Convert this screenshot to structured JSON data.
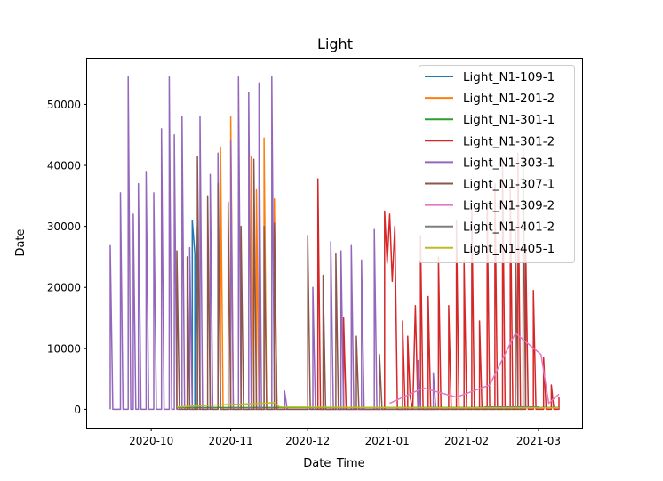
{
  "chart_data": {
    "type": "line",
    "title": "Light",
    "xlabel": "Date_Time",
    "ylabel": "Date",
    "xlim": [
      "2020-09-06",
      "2021-03-18"
    ],
    "ylim": [
      -3000,
      57500
    ],
    "x_ticks": [
      "2020-10-01",
      "2020-11-01",
      "2020-12-01",
      "2021-01-01",
      "2021-02-01",
      "2021-03-01"
    ],
    "x_tick_labels": [
      "2020-10",
      "2020-11",
      "2020-12",
      "2021-01",
      "2021-02",
      "2021-03"
    ],
    "y_ticks": [
      0,
      10000,
      20000,
      30000,
      40000,
      50000
    ],
    "y_tick_labels": [
      "0",
      "10000",
      "20000",
      "30000",
      "40000",
      "50000"
    ],
    "grid": false,
    "legend_position": "top-right",
    "series": [
      {
        "name": "Light_N1-109-1",
        "color": "#1f77b4",
        "points": [
          [
            "2020-10-17",
            0
          ],
          [
            "2020-10-17",
            31000
          ],
          [
            "2020-10-18",
            25500
          ],
          [
            "2020-10-18",
            0
          ],
          [
            "2020-10-19",
            30000
          ],
          [
            "2020-10-19",
            0
          ]
        ]
      },
      {
        "name": "Light_N1-201-2",
        "color": "#ff7f0e",
        "points": [
          [
            "2020-10-28",
            0
          ],
          [
            "2020-10-28",
            43000
          ],
          [
            "2020-10-29",
            0
          ],
          [
            "2020-11-01",
            0
          ],
          [
            "2020-11-01",
            48000
          ],
          [
            "2020-11-02",
            0
          ],
          [
            "2020-11-09",
            0
          ],
          [
            "2020-11-09",
            41500
          ],
          [
            "2020-11-10",
            0
          ],
          [
            "2020-11-11",
            0
          ],
          [
            "2020-11-11",
            36000
          ],
          [
            "2020-11-12",
            0
          ],
          [
            "2020-11-14",
            0
          ],
          [
            "2020-11-14",
            44500
          ],
          [
            "2020-11-15",
            0
          ],
          [
            "2020-11-18",
            0
          ],
          [
            "2020-11-18",
            34500
          ],
          [
            "2020-11-19",
            0
          ]
        ]
      },
      {
        "name": "Light_N1-301-1",
        "color": "#2ca02c",
        "points": [
          [
            "2020-10-11",
            300
          ],
          [
            "2021-03-09",
            300
          ]
        ]
      },
      {
        "name": "Light_N1-301-2",
        "color": "#d62728",
        "points": [
          [
            "2020-12-05",
            0
          ],
          [
            "2020-12-05",
            37800
          ],
          [
            "2020-12-06",
            0
          ],
          [
            "2020-12-15",
            0
          ],
          [
            "2020-12-15",
            15000
          ],
          [
            "2020-12-16",
            0
          ],
          [
            "2020-12-31",
            0
          ],
          [
            "2020-12-31",
            32500
          ],
          [
            "2021-01-01",
            24000
          ],
          [
            "2021-01-02",
            32000
          ],
          [
            "2021-01-03",
            21000
          ],
          [
            "2021-01-04",
            30000
          ],
          [
            "2021-01-05",
            0
          ],
          [
            "2021-01-07",
            0
          ],
          [
            "2021-01-07",
            14500
          ],
          [
            "2021-01-08",
            0
          ],
          [
            "2021-01-09",
            0
          ],
          [
            "2021-01-09",
            12000
          ],
          [
            "2021-01-10",
            2000
          ],
          [
            "2021-01-11",
            0
          ],
          [
            "2021-01-12",
            17000
          ],
          [
            "2021-01-13",
            0
          ],
          [
            "2021-01-14",
            0
          ],
          [
            "2021-01-14",
            28500
          ],
          [
            "2021-01-15",
            0
          ],
          [
            "2021-01-17",
            0
          ],
          [
            "2021-01-17",
            18500
          ],
          [
            "2021-01-18",
            0
          ],
          [
            "2021-01-21",
            0
          ],
          [
            "2021-01-21",
            25000
          ],
          [
            "2021-01-22",
            0
          ],
          [
            "2021-01-25",
            0
          ],
          [
            "2021-01-25",
            17000
          ],
          [
            "2021-01-26",
            0
          ],
          [
            "2021-01-28",
            0
          ],
          [
            "2021-01-28",
            31000
          ],
          [
            "2021-01-29",
            0
          ],
          [
            "2021-01-31",
            0
          ],
          [
            "2021-01-31",
            24500
          ],
          [
            "2021-02-01",
            0
          ],
          [
            "2021-02-03",
            0
          ],
          [
            "2021-02-03",
            33000
          ],
          [
            "2021-02-04",
            0
          ],
          [
            "2021-02-06",
            0
          ],
          [
            "2021-02-06",
            14500
          ],
          [
            "2021-02-07",
            0
          ],
          [
            "2021-02-09",
            0
          ],
          [
            "2021-02-09",
            34000
          ],
          [
            "2021-02-10",
            0
          ],
          [
            "2021-02-12",
            0
          ],
          [
            "2021-02-12",
            37000
          ],
          [
            "2021-02-13",
            0
          ],
          [
            "2021-02-15",
            0
          ],
          [
            "2021-02-15",
            40000
          ],
          [
            "2021-02-16",
            0
          ],
          [
            "2021-02-18",
            0
          ],
          [
            "2021-02-18",
            36500
          ],
          [
            "2021-02-19",
            0
          ],
          [
            "2021-02-21",
            0
          ],
          [
            "2021-02-21",
            42000
          ],
          [
            "2021-02-22",
            0
          ],
          [
            "2021-02-24",
            0
          ],
          [
            "2021-02-24",
            27000
          ],
          [
            "2021-02-25",
            0
          ],
          [
            "2021-02-27",
            0
          ],
          [
            "2021-02-27",
            19500
          ],
          [
            "2021-02-28",
            0
          ],
          [
            "2021-03-03",
            0
          ],
          [
            "2021-03-03",
            8500
          ],
          [
            "2021-03-04",
            0
          ],
          [
            "2021-03-06",
            0
          ],
          [
            "2021-03-06",
            4000
          ],
          [
            "2021-03-07",
            0
          ],
          [
            "2021-03-09",
            0
          ],
          [
            "2021-03-09",
            2000
          ]
        ]
      },
      {
        "name": "Light_N1-303-1",
        "color": "#9467bd",
        "points": [
          [
            "2020-09-15",
            0
          ],
          [
            "2020-09-15",
            27000
          ],
          [
            "2020-09-16",
            0
          ],
          [
            "2020-09-19",
            0
          ],
          [
            "2020-09-19",
            35500
          ],
          [
            "2020-09-20",
            0
          ],
          [
            "2020-09-22",
            0
          ],
          [
            "2020-09-22",
            54500
          ],
          [
            "2020-09-23",
            0
          ],
          [
            "2020-09-24",
            0
          ],
          [
            "2020-09-24",
            32000
          ],
          [
            "2020-09-25",
            0
          ],
          [
            "2020-09-26",
            0
          ],
          [
            "2020-09-26",
            37000
          ],
          [
            "2020-09-27",
            0
          ],
          [
            "2020-09-29",
            0
          ],
          [
            "2020-09-29",
            39000
          ],
          [
            "2020-09-30",
            0
          ],
          [
            "2020-10-02",
            0
          ],
          [
            "2020-10-02",
            35500
          ],
          [
            "2020-10-03",
            0
          ],
          [
            "2020-10-05",
            0
          ],
          [
            "2020-10-05",
            46000
          ],
          [
            "2020-10-06",
            0
          ],
          [
            "2020-10-08",
            0
          ],
          [
            "2020-10-08",
            54500
          ],
          [
            "2020-10-09",
            0
          ],
          [
            "2020-10-10",
            0
          ],
          [
            "2020-10-10",
            45000
          ],
          [
            "2020-10-11",
            0
          ],
          [
            "2020-10-13",
            0
          ],
          [
            "2020-10-13",
            48000
          ],
          [
            "2020-10-14",
            0
          ],
          [
            "2020-10-16",
            0
          ],
          [
            "2020-10-16",
            26500
          ],
          [
            "2020-10-17",
            0
          ],
          [
            "2020-10-20",
            0
          ],
          [
            "2020-10-20",
            48000
          ],
          [
            "2020-10-21",
            0
          ],
          [
            "2020-10-24",
            0
          ],
          [
            "2020-10-24",
            38500
          ],
          [
            "2020-10-25",
            0
          ],
          [
            "2020-10-27",
            0
          ],
          [
            "2020-10-27",
            42000
          ],
          [
            "2020-10-28",
            0
          ],
          [
            "2020-11-01",
            0
          ],
          [
            "2020-11-01",
            44000
          ],
          [
            "2020-11-02",
            0
          ],
          [
            "2020-11-04",
            0
          ],
          [
            "2020-11-04",
            54500
          ],
          [
            "2020-11-05",
            0
          ],
          [
            "2020-11-08",
            0
          ],
          [
            "2020-11-08",
            52000
          ],
          [
            "2020-11-09",
            0
          ],
          [
            "2020-11-12",
            0
          ],
          [
            "2020-11-12",
            53500
          ],
          [
            "2020-11-13",
            0
          ],
          [
            "2020-11-17",
            0
          ],
          [
            "2020-11-17",
            54500
          ],
          [
            "2020-11-18",
            0
          ],
          [
            "2020-11-22",
            0
          ],
          [
            "2020-11-22",
            3000
          ],
          [
            "2020-11-23",
            0
          ],
          [
            "2020-12-03",
            0
          ],
          [
            "2020-12-03",
            20000
          ],
          [
            "2020-12-04",
            0
          ],
          [
            "2020-12-10",
            0
          ],
          [
            "2020-12-10",
            27500
          ],
          [
            "2020-12-11",
            0
          ],
          [
            "2020-12-14",
            0
          ],
          [
            "2020-12-14",
            26000
          ],
          [
            "2020-12-15",
            0
          ],
          [
            "2020-12-18",
            0
          ],
          [
            "2020-12-18",
            27000
          ],
          [
            "2020-12-19",
            0
          ],
          [
            "2020-12-22",
            0
          ],
          [
            "2020-12-22",
            24500
          ],
          [
            "2020-12-23",
            0
          ],
          [
            "2020-12-27",
            0
          ],
          [
            "2020-12-27",
            29500
          ],
          [
            "2020-12-28",
            0
          ],
          [
            "2021-01-13",
            0
          ],
          [
            "2021-01-13",
            8000
          ],
          [
            "2021-01-14",
            0
          ],
          [
            "2021-01-19",
            0
          ],
          [
            "2021-01-19",
            6000
          ],
          [
            "2021-01-20",
            0
          ]
        ]
      },
      {
        "name": "Light_N1-307-1",
        "color": "#8c564b",
        "points": [
          [
            "2020-10-11",
            0
          ],
          [
            "2020-10-11",
            26000
          ],
          [
            "2020-10-12",
            0
          ],
          [
            "2020-10-15",
            0
          ],
          [
            "2020-10-15",
            25000
          ],
          [
            "2020-10-16",
            0
          ],
          [
            "2020-10-19",
            0
          ],
          [
            "2020-10-19",
            41500
          ],
          [
            "2020-10-20",
            0
          ],
          [
            "2020-10-23",
            0
          ],
          [
            "2020-10-23",
            35000
          ],
          [
            "2020-10-24",
            0
          ],
          [
            "2020-10-27",
            0
          ],
          [
            "2020-10-27",
            37000
          ],
          [
            "2020-10-28",
            0
          ],
          [
            "2020-10-31",
            0
          ],
          [
            "2020-10-31",
            34000
          ],
          [
            "2020-11-01",
            0
          ],
          [
            "2020-11-05",
            0
          ],
          [
            "2020-11-05",
            30000
          ],
          [
            "2020-11-06",
            0
          ],
          [
            "2020-11-10",
            0
          ],
          [
            "2020-11-10",
            41000
          ],
          [
            "2020-11-11",
            0
          ],
          [
            "2020-11-14",
            0
          ],
          [
            "2020-11-14",
            30000
          ],
          [
            "2020-11-15",
            0
          ],
          [
            "2020-11-18",
            0
          ],
          [
            "2020-11-18",
            30500
          ],
          [
            "2020-11-19",
            0
          ],
          [
            "2020-12-01",
            0
          ],
          [
            "2020-12-01",
            28500
          ],
          [
            "2020-12-02",
            0
          ],
          [
            "2020-12-07",
            0
          ],
          [
            "2020-12-07",
            22000
          ],
          [
            "2020-12-08",
            0
          ],
          [
            "2020-12-12",
            0
          ],
          [
            "2020-12-12",
            25500
          ],
          [
            "2020-12-13",
            0
          ],
          [
            "2020-12-20",
            0
          ],
          [
            "2020-12-20",
            12000
          ],
          [
            "2020-12-21",
            0
          ],
          [
            "2020-12-29",
            0
          ],
          [
            "2020-12-29",
            9000
          ],
          [
            "2020-12-30",
            0
          ],
          [
            "2021-02-20",
            0
          ],
          [
            "2021-02-20",
            30000
          ],
          [
            "2021-02-21",
            0
          ],
          [
            "2021-02-23",
            0
          ],
          [
            "2021-02-23",
            43000
          ],
          [
            "2021-02-24",
            0
          ]
        ]
      },
      {
        "name": "Light_N1-309-2",
        "color": "#e377c2",
        "points": [
          [
            "2021-01-02",
            1000
          ],
          [
            "2021-01-15",
            3500
          ],
          [
            "2021-01-28",
            2000
          ],
          [
            "2021-02-10",
            4000
          ],
          [
            "2021-02-20",
            12500
          ],
          [
            "2021-03-02",
            9000
          ],
          [
            "2021-03-05",
            1000
          ],
          [
            "2021-03-09",
            2500
          ]
        ]
      },
      {
        "name": "Light_N1-401-2",
        "color": "#7f7f7f",
        "points": [
          [
            "2021-02-08",
            400
          ],
          [
            "2021-03-01",
            400
          ]
        ]
      },
      {
        "name": "Light_N1-405-1",
        "color": "#bcbd22",
        "points": [
          [
            "2020-10-11",
            400
          ],
          [
            "2020-10-25",
            700
          ],
          [
            "2020-11-08",
            900
          ],
          [
            "2020-11-18",
            1100
          ],
          [
            "2020-11-20",
            400
          ],
          [
            "2021-01-01",
            300
          ],
          [
            "2021-02-01",
            250
          ],
          [
            "2021-03-09",
            250
          ]
        ]
      }
    ]
  }
}
